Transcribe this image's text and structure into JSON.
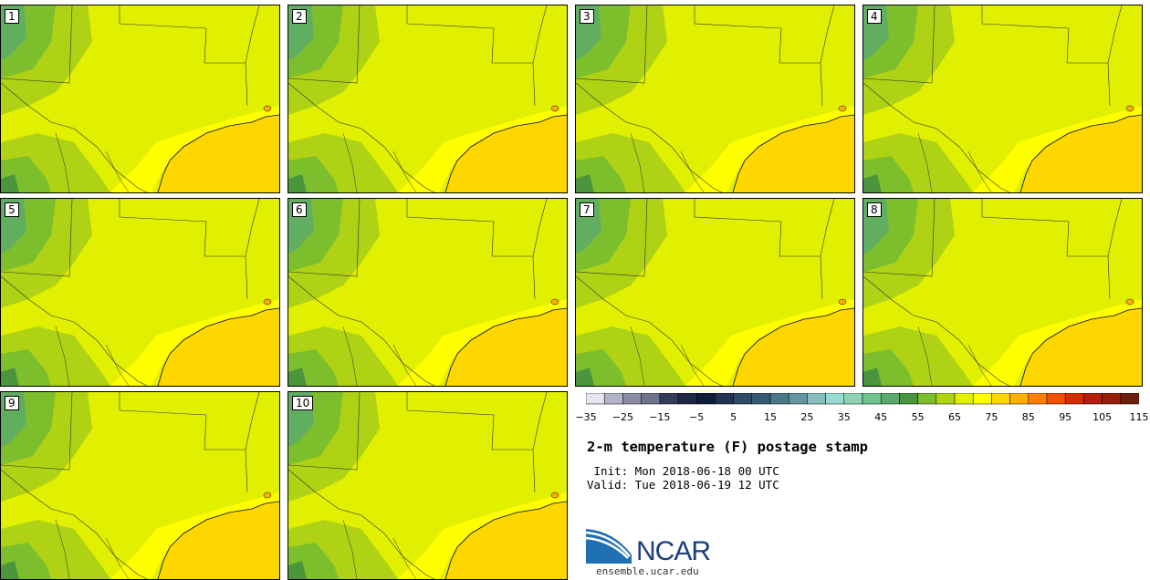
{
  "panels": [
    {
      "label": "1"
    },
    {
      "label": "2"
    },
    {
      "label": "3"
    },
    {
      "label": "4"
    },
    {
      "label": "5"
    },
    {
      "label": "6"
    },
    {
      "label": "7"
    },
    {
      "label": "8"
    },
    {
      "label": "9"
    },
    {
      "label": "10"
    }
  ],
  "colorbar": {
    "colors": [
      "#e6e6f0",
      "#b4b4c8",
      "#8c8ca5",
      "#6e738c",
      "#323c5a",
      "#1e2846",
      "#0f1e37",
      "#233250",
      "#2d4b64",
      "#375a73",
      "#4b7887",
      "#6496a0",
      "#87bebe",
      "#96dcd2",
      "#8cd2b4",
      "#6ec391",
      "#5aaa6e",
      "#4b963c",
      "#7dbe2d",
      "#afd214",
      "#e1f000",
      "#ffff00",
      "#ffd700",
      "#ffaf00",
      "#ff7d00",
      "#f05000",
      "#d22d00",
      "#b41e0a",
      "#961e0a",
      "#6e1e0a"
    ],
    "tick_labels": [
      "−35",
      "−25",
      "−15",
      "−5",
      "5",
      "15",
      "25",
      "35",
      "45",
      "55",
      "65",
      "75",
      "85",
      "95",
      "105",
      "115"
    ]
  },
  "title": "2-m temperature (F) postage stamp",
  "init": " Init: Mon 2018-06-18 00 UTC",
  "valid": "Valid: Tue 2018-06-19 12 UTC",
  "logo_text": "NCAR",
  "url": "ensemble.ucar.edu"
}
